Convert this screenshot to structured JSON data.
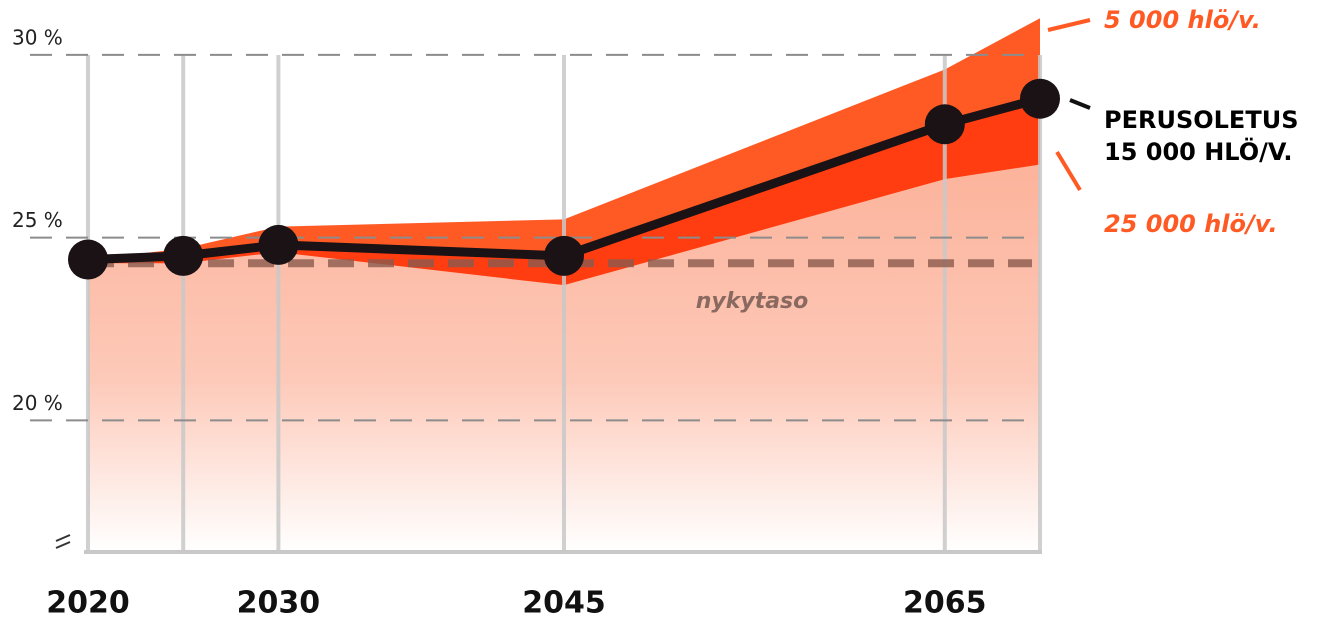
{
  "chart_data": {
    "type": "line",
    "x": [
      2020,
      2025,
      2030,
      2045,
      2065,
      2070
    ],
    "xlim": [
      2020,
      2070
    ],
    "xticks": [
      2020,
      2030,
      2045,
      2065
    ],
    "ylim": [
      16.4,
      31.5
    ],
    "yticks": [
      {
        "value": 20,
        "label": "20 %"
      },
      {
        "value": 25,
        "label": "25 %"
      },
      {
        "value": 30,
        "label": "30 %"
      }
    ],
    "grid": true,
    "series": [
      {
        "name": "5 000 hlö/v.",
        "color": "#ff5a24",
        "values": [
          24.4,
          24.7,
          25.3,
          25.5,
          29.6,
          31.0
        ]
      },
      {
        "name": "PERUSOLETUS\n15 000 HLÖ/V.",
        "color": "#1a1214",
        "values": [
          24.4,
          24.5,
          24.8,
          24.5,
          28.1,
          28.8
        ]
      },
      {
        "name": "25 000 hlö/v.",
        "color": "#ff3d10",
        "values": [
          24.3,
          24.3,
          24.6,
          23.7,
          26.6,
          27.0
        ]
      }
    ],
    "reference": {
      "value": 24.3,
      "label": "nykytaso"
    }
  }
}
